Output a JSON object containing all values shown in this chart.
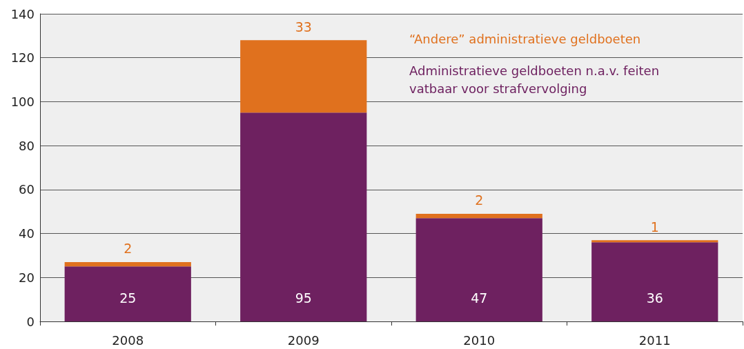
{
  "chart_data": {
    "type": "bar",
    "stacked": true,
    "categories": [
      "2008",
      "2009",
      "2010",
      "2011"
    ],
    "series": [
      {
        "name": "Administratieve geldboeten n.a.v. feiten vatbaar voor strafvervolging",
        "color": "#6e2160",
        "values": [
          25,
          95,
          47,
          36
        ]
      },
      {
        "name": "“Andere” administratieve geldboeten",
        "color": "#e0711e",
        "values": [
          2,
          33,
          2,
          1
        ]
      }
    ],
    "ylim": [
      0,
      140
    ],
    "yticks": [
      0,
      20,
      40,
      60,
      80,
      100,
      120,
      140
    ],
    "grid": "y",
    "legend": "top right",
    "data_labels": true
  }
}
